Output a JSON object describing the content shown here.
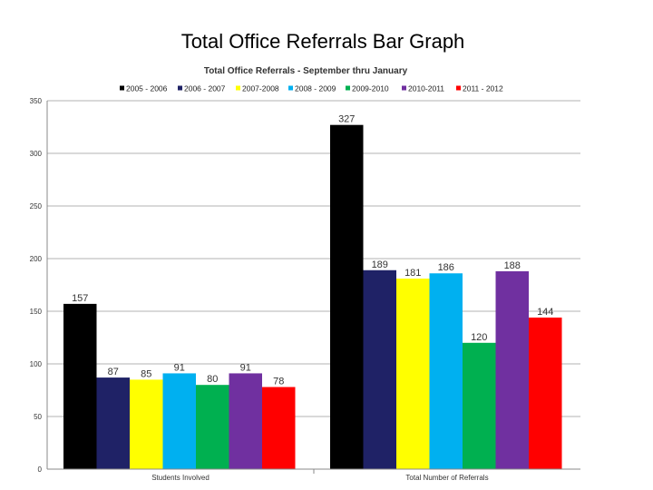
{
  "slide": {
    "title": "Total Office Referrals Bar Graph"
  },
  "chart_data": {
    "type": "bar",
    "title": "Total Office Referrals - September thru January",
    "xlabel": "",
    "ylabel": "",
    "ylim": [
      0,
      350
    ],
    "yticks": [
      0,
      50,
      100,
      150,
      200,
      250,
      300,
      350
    ],
    "grid": true,
    "legend_position": "top",
    "categories": [
      "Students Involved",
      "Total Number of Referrals"
    ],
    "series": [
      {
        "name": "2005 - 2006",
        "color": "#000000",
        "values": [
          157,
          327
        ]
      },
      {
        "name": "2006 - 2007",
        "color": "#1f2266",
        "values": [
          87,
          189
        ]
      },
      {
        "name": "2007-2008",
        "color": "#ffff00",
        "values": [
          85,
          181
        ]
      },
      {
        "name": "2008 - 2009",
        "color": "#00b0f0",
        "values": [
          91,
          186
        ]
      },
      {
        "name": "2009-2010",
        "color": "#00b050",
        "values": [
          80,
          120
        ]
      },
      {
        "name": "2010-2011",
        "color": "#7030a0",
        "values": [
          91,
          188
        ]
      },
      {
        "name": "2011 - 2012",
        "color": "#ff0000",
        "values": [
          78,
          144
        ]
      }
    ]
  }
}
